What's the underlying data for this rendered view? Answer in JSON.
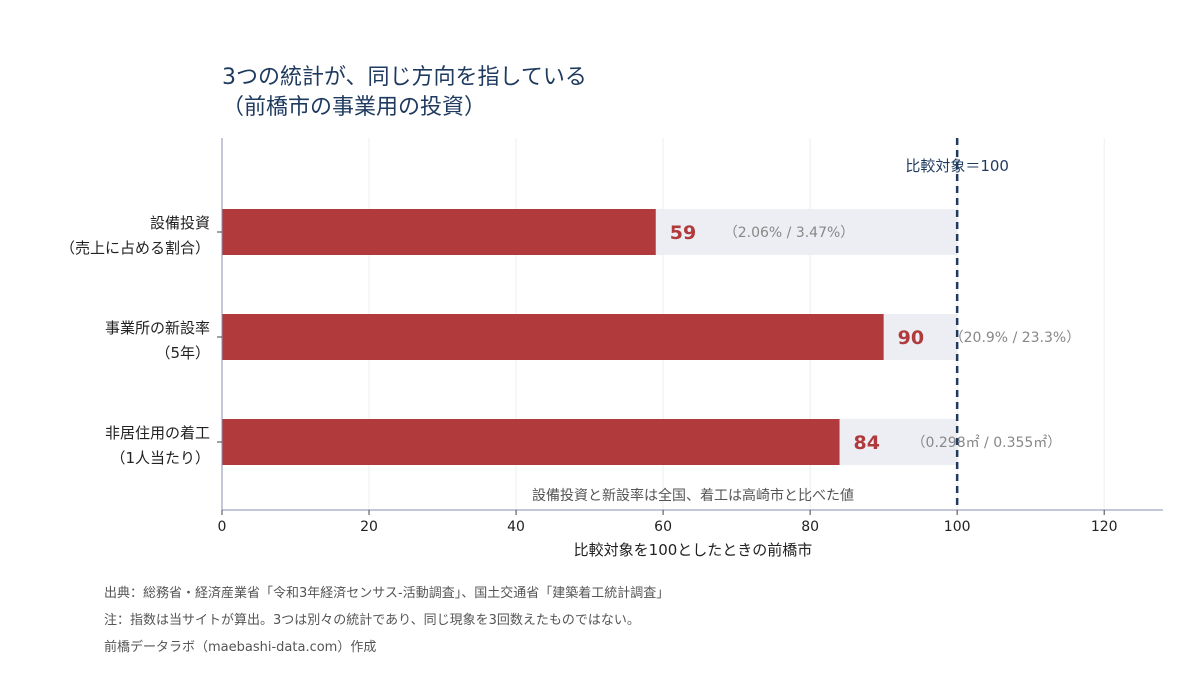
{
  "title_lines": [
    "3つの統計が、同じ方向を指している",
    "（前橋市の事業用の投資）"
  ],
  "footer": {
    "source": "出典：総務省・経済産業省「令和3年経済センサス-活動調査」、国土交通省「建築着工統計調査」",
    "note": "注：指数は当サイトが算出。3つは別々の統計であり、同じ現象を3回数えたものではない。",
    "credit": "前橋データラボ（maebashi-data.com）作成"
  },
  "chart_data": {
    "type": "bar",
    "orientation": "horizontal",
    "categories": [
      [
        "設備投資",
        "（売上に占める割合）"
      ],
      [
        "事業所の新設率",
        "（5年）"
      ],
      [
        "非居住用の着工",
        "（1人当たり）"
      ]
    ],
    "values": [
      59,
      90,
      84
    ],
    "value_labels": [
      "59",
      "90",
      "84"
    ],
    "sub_labels": [
      "（2.06% / 3.47%）",
      "（20.9% / 23.3%）",
      "（0.298㎡ / 0.355㎡）"
    ],
    "reference_value": 100,
    "reference_label": "比較対象＝100",
    "xlabel": "比較対象を100としたときの前橋市",
    "ylabel": "",
    "xlim": [
      0,
      128
    ],
    "xticks": [
      0,
      20,
      40,
      60,
      80,
      100,
      120
    ],
    "annotation": "設備投資と新設率は全国、着工は高崎市と比べた値",
    "grid": true,
    "colors": {
      "bar": "#b03a3c",
      "background_bar": "#eceef3",
      "reference_line": "#1f3a5f",
      "value_label": "#b03a3c",
      "title": "#1f3a5f"
    }
  }
}
